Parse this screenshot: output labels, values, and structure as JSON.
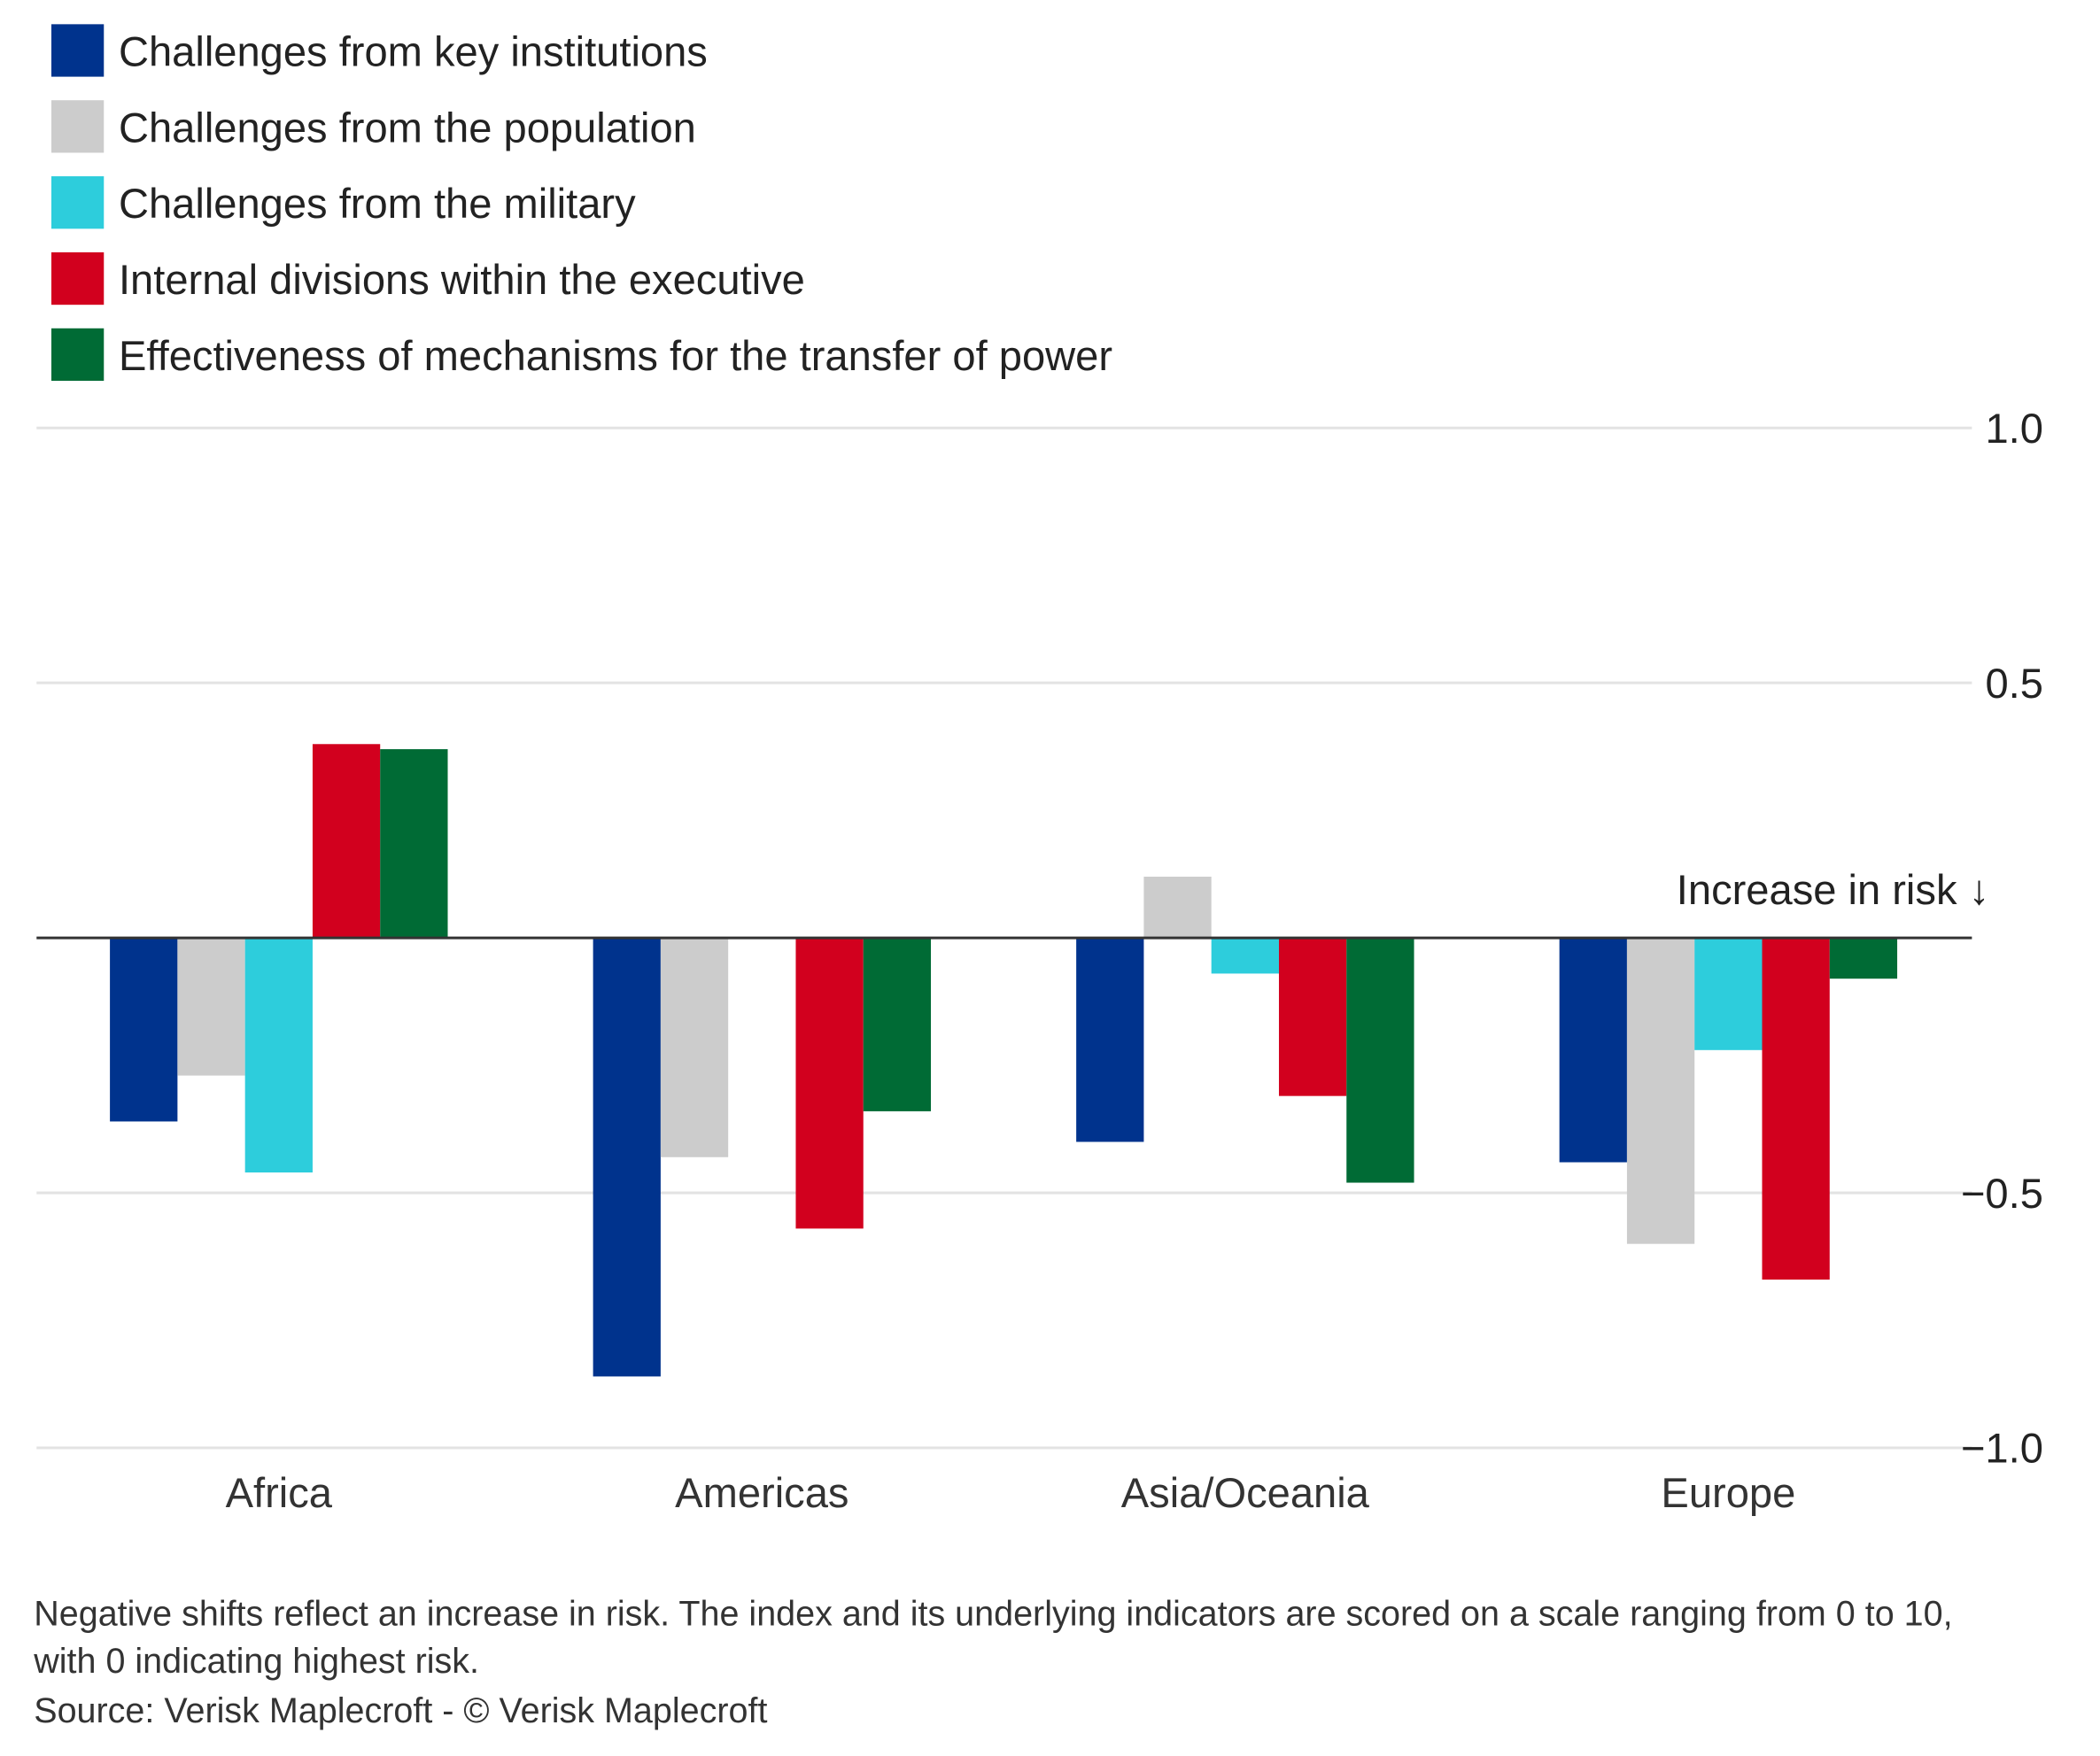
{
  "chart_data": {
    "type": "bar",
    "categories": [
      "Africa",
      "Americas",
      "Asia/Oceania",
      "Europe"
    ],
    "series": [
      {
        "name": "Challenges from key institutions",
        "color": "#00338d",
        "values": [
          -0.36,
          -0.86,
          -0.4,
          -0.44
        ]
      },
      {
        "name": "Challenges from the population",
        "color": "#cccccc",
        "values": [
          -0.27,
          -0.43,
          0.12,
          -0.6
        ]
      },
      {
        "name": "Challenges from the military",
        "color": "#2dcddc",
        "values": [
          -0.46,
          0.0,
          -0.07,
          -0.22
        ]
      },
      {
        "name": "Internal divisions within the executive",
        "color": "#d2001e",
        "values": [
          0.38,
          -0.57,
          -0.31,
          -0.67
        ]
      },
      {
        "name": "Effectiveness of mechanisms for the transfer of power",
        "color": "#006b35",
        "values": [
          0.37,
          -0.34,
          -0.48,
          -0.08
        ]
      }
    ],
    "ylim": [
      -1.0,
      1.0
    ],
    "yticks": [
      1.0,
      0.5,
      -0.5,
      -1.0
    ],
    "ytick_labels": [
      "1.0",
      "0.5",
      "−0.5",
      "−1.0"
    ],
    "y_axis_side": "right",
    "grid": true,
    "legend_placement": "top-left",
    "annotation": "Increase in risk ↓",
    "footnote": [
      "Negative shifts reflect an increase in risk. The index and its underlying indicators are scored on a scale ranging from 0 to 10,",
      "with 0 indicating highest risk.",
      "Source: Verisk Maplecroft - © Verisk Maplecroft"
    ]
  }
}
